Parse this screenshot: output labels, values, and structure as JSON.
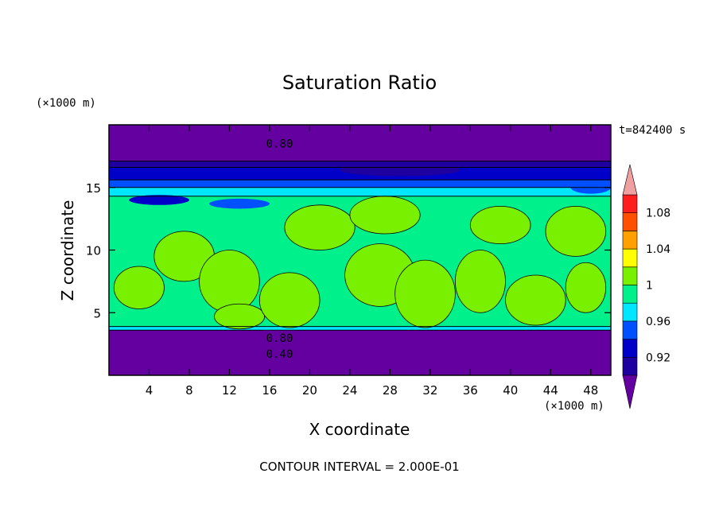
{
  "chart_data": {
    "type": "heatmap",
    "title": "Saturation Ratio",
    "xlabel": "X coordinate",
    "ylabel": "Z coordinate",
    "x_unit": "(×1000 m)",
    "z_unit": "(×1000 m)",
    "time_label": "t=842400 s",
    "footer": "CONTOUR INTERVAL = 2.000E-01",
    "xlim": [
      0,
      50
    ],
    "ylim": [
      0,
      20
    ],
    "xticks": [
      4,
      8,
      12,
      16,
      20,
      24,
      28,
      32,
      36,
      40,
      44,
      48
    ],
    "yticks": [
      5,
      10,
      15
    ],
    "contour_labels": [
      {
        "text": "0.80",
        "x": 17.0,
        "z": 18.5
      },
      {
        "text": "0.80",
        "x": 17.0,
        "z": 3.0
      },
      {
        "text": "0.40",
        "x": 17.0,
        "z": 1.7
      }
    ],
    "colorbar": {
      "levels": [
        0.9,
        0.92,
        0.94,
        0.96,
        0.98,
        1.0,
        1.02,
        1.04,
        1.06,
        1.08,
        1.1
      ],
      "labels": [
        "0.92",
        "0.96",
        "1",
        "1.04",
        "1.08"
      ],
      "label_values": [
        0.92,
        0.96,
        1.0,
        1.04,
        1.08
      ],
      "colors": [
        "#6400a0",
        "#1e00a0",
        "#0000c8",
        "#0050ff",
        "#00e6ff",
        "#00f08c",
        "#78f000",
        "#ffff00",
        "#ffa000",
        "#ff5000",
        "#ff1e1e",
        "#f0a0a0"
      ],
      "under_color": "#6400a0",
      "over_color": "#f0a0a0"
    },
    "bands": [
      {
        "z0": 0.0,
        "z1": 3.6,
        "value": 0.9,
        "color": "#6400a0"
      },
      {
        "z0": 3.6,
        "z1": 3.9,
        "value": 0.97,
        "color": "#00e6ff"
      },
      {
        "z0": 3.9,
        "z1": 14.3,
        "value": 0.99,
        "color": "#00f08c"
      },
      {
        "z0": 14.3,
        "z1": 15.0,
        "value": 0.97,
        "color": "#00e6ff"
      },
      {
        "z0": 15.0,
        "z1": 15.6,
        "value": 0.95,
        "color": "#0050ff"
      },
      {
        "z0": 15.6,
        "z1": 16.6,
        "value": 0.93,
        "color": "#0000c8"
      },
      {
        "z0": 16.6,
        "z1": 17.1,
        "value": 0.91,
        "color": "#1e00a0"
      },
      {
        "z0": 17.1,
        "z1": 20.0,
        "value": 0.9,
        "color": "#6400a0"
      }
    ],
    "supersaturated_patches": [
      {
        "x": 3.0,
        "z": 7.0,
        "rx": 2.5,
        "rz": 1.7,
        "value": 1.01
      },
      {
        "x": 7.5,
        "z": 9.5,
        "rx": 3.0,
        "rz": 2.0,
        "value": 1.01
      },
      {
        "x": 12.0,
        "z": 7.5,
        "rx": 3.0,
        "rz": 2.5,
        "value": 1.01
      },
      {
        "x": 13.0,
        "z": 4.7,
        "rx": 2.5,
        "rz": 1.0,
        "value": 1.01
      },
      {
        "x": 18.0,
        "z": 6.0,
        "rx": 3.0,
        "rz": 2.2,
        "value": 1.01
      },
      {
        "x": 21.0,
        "z": 11.8,
        "rx": 3.5,
        "rz": 1.8,
        "value": 1.01
      },
      {
        "x": 27.5,
        "z": 12.8,
        "rx": 3.5,
        "rz": 1.5,
        "value": 1.01
      },
      {
        "x": 27.0,
        "z": 8.0,
        "rx": 3.5,
        "rz": 2.5,
        "value": 1.01
      },
      {
        "x": 31.5,
        "z": 6.5,
        "rx": 3.0,
        "rz": 2.7,
        "value": 1.01
      },
      {
        "x": 37.0,
        "z": 7.5,
        "rx": 2.5,
        "rz": 2.5,
        "value": 1.01
      },
      {
        "x": 39.0,
        "z": 12.0,
        "rx": 3.0,
        "rz": 1.5,
        "value": 1.01
      },
      {
        "x": 42.5,
        "z": 6.0,
        "rx": 3.0,
        "rz": 2.0,
        "value": 1.01
      },
      {
        "x": 46.5,
        "z": 11.5,
        "rx": 3.0,
        "rz": 2.0,
        "value": 1.01
      },
      {
        "x": 47.5,
        "z": 7.0,
        "rx": 2.0,
        "rz": 2.0,
        "value": 1.01
      }
    ],
    "cloud_filaments": [
      {
        "x": 5.0,
        "z": 14.0,
        "rx": 3.0,
        "rz": 0.4,
        "value": 0.93
      },
      {
        "x": 13.0,
        "z": 13.7,
        "rx": 3.0,
        "rz": 0.4,
        "value": 0.95
      },
      {
        "x": 29.0,
        "z": 16.4,
        "rx": 6.0,
        "rz": 0.5,
        "value": 0.9
      },
      {
        "x": 48.0,
        "z": 15.0,
        "rx": 2.0,
        "rz": 0.5,
        "value": 0.95
      }
    ]
  }
}
